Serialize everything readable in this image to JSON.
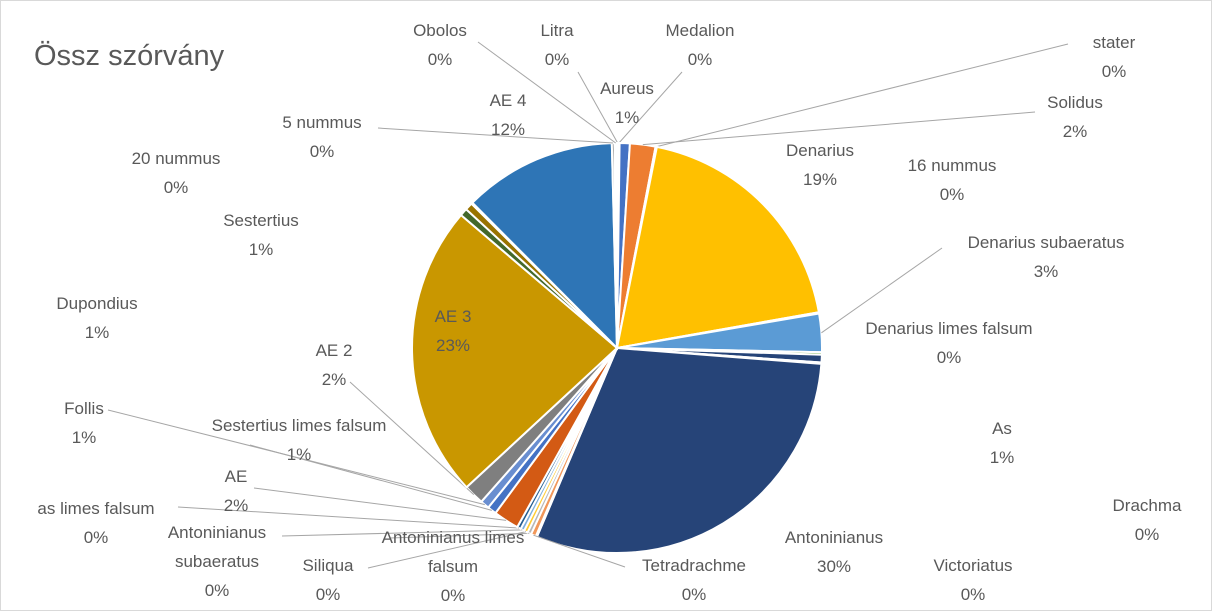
{
  "chart_data": {
    "type": "pie",
    "title": "Össz szórvány",
    "categories": [
      "Litra",
      "Medalion",
      "Aureus",
      "Solidus",
      "stater",
      "Denarius",
      "16 nummus",
      "Denarius subaeratus",
      "Denarius limes falsum",
      "As",
      "Drachma",
      "Antoninianus",
      "Victoriatus",
      "Tetradrachme",
      "Antoninianus limes falsum",
      "Siliqua",
      "Antoninianus subaeratus",
      "as limes falsum",
      "AE",
      "Sestertius limes falsum",
      "Follis",
      "AE 2",
      "AE 3",
      "Dupondius",
      "Sestertius",
      "20 nummus",
      "AE 4",
      "5 nummus",
      "Obolos"
    ],
    "values": [
      0.1,
      0.1,
      0.8,
      2,
      0.1,
      19,
      0.1,
      3,
      0.2,
      0.6,
      0.1,
      30,
      0.1,
      0.4,
      0.3,
      0.3,
      0.3,
      0.3,
      2,
      0.7,
      0.7,
      1.6,
      23,
      0.6,
      0.6,
      0.1,
      12,
      0.2,
      0.2
    ],
    "value_labels": [
      "0%",
      "0%",
      "1%",
      "2%",
      "0%",
      "19%",
      "0%",
      "3%",
      "0%",
      "1%",
      "0%",
      "30%",
      "0%",
      "0%",
      "0%",
      "0%",
      "0%",
      "0%",
      "2%",
      "1%",
      "1%",
      "2%",
      "23%",
      "1%",
      "1%",
      "0%",
      "12%",
      "0%",
      "0%"
    ],
    "colors": [
      "#a5a5a5",
      "#5b9bd5",
      "#4472c4",
      "#ed7d31",
      "#a5a5a5",
      "#ffc000",
      "#70ad47",
      "#5b9bd5",
      "#70ad47",
      "#264478",
      "#9e480e",
      "#264478",
      "#636363",
      "#f1975a",
      "#b7b7b7",
      "#ffcd33",
      "#7cafdd",
      "#255e91",
      "#d35a14",
      "#4472c4",
      "#698ed0",
      "#7f7f7f",
      "#c99700",
      "#43682b",
      "#997300",
      "#9e480e",
      "#2e75b6",
      "#636363",
      "#ffffff"
    ]
  }
}
